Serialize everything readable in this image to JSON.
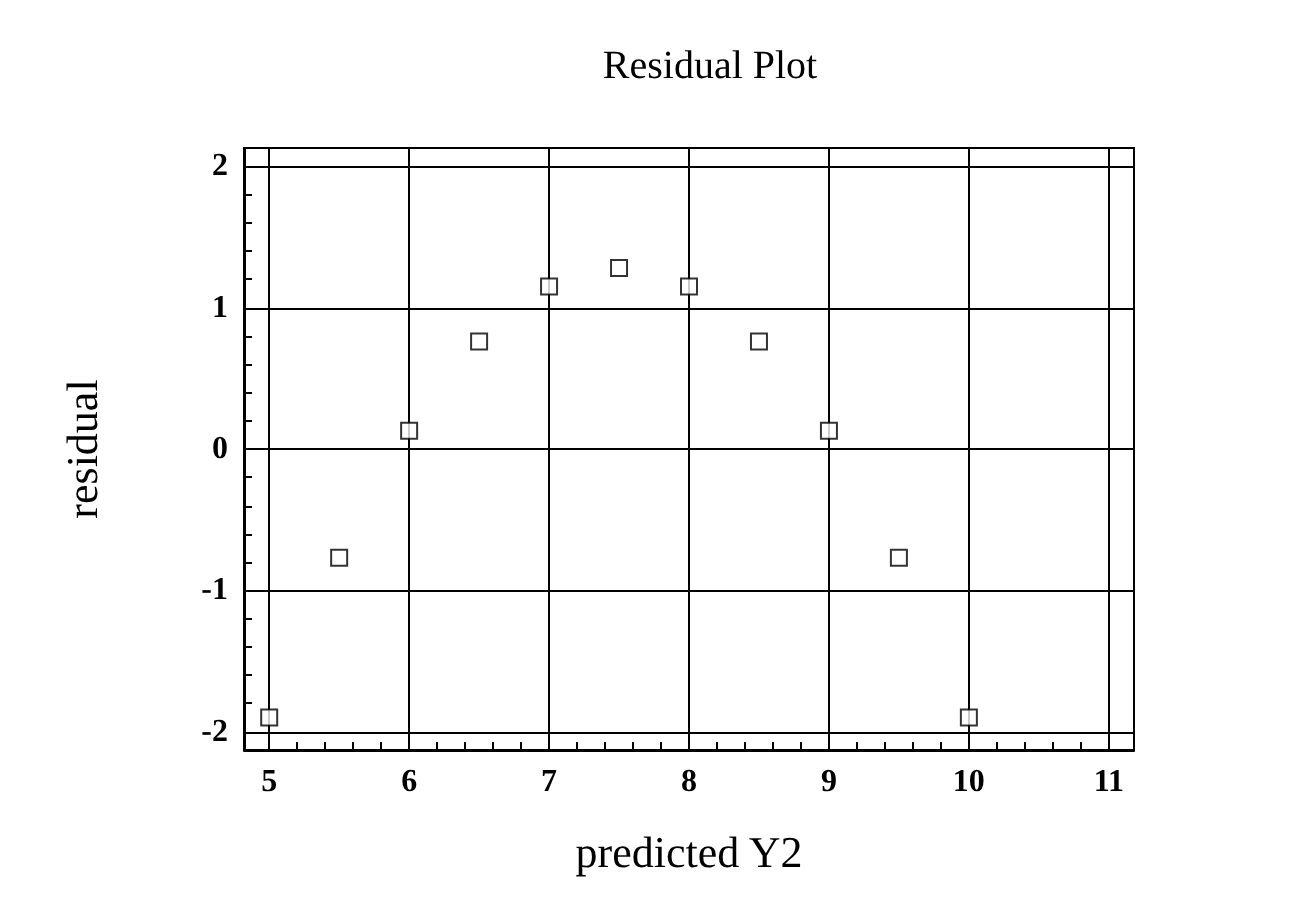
{
  "chart_data": {
    "type": "scatter",
    "title": "Residual Plot",
    "xlabel": "predicted Y2",
    "ylabel": "residual",
    "x": [
      5,
      5.5,
      6,
      6.5,
      7,
      7.5,
      8,
      8.5,
      9,
      9.5,
      10
    ],
    "values": [
      -1.9,
      -0.77,
      0.13,
      0.76,
      1.15,
      1.28,
      1.15,
      0.76,
      0.13,
      -0.77,
      -1.9
    ],
    "color": "#000000",
    "marker": "square",
    "xlim": [
      4.82,
      11.18
    ],
    "xticks": [
      5,
      6,
      7,
      8,
      9,
      10,
      11
    ],
    "ylim": [
      -2.13,
      2.13
    ],
    "yticks": [
      -2,
      -1,
      0,
      1,
      2
    ],
    "grid": true
  }
}
